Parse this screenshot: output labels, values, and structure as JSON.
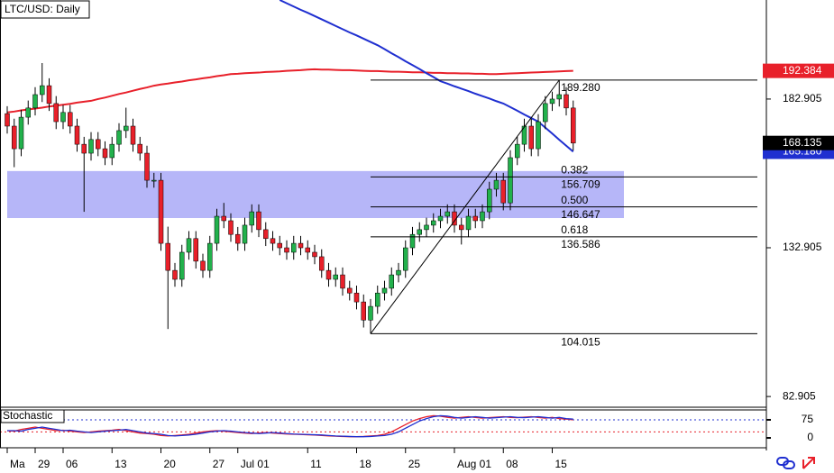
{
  "chart_data": {
    "type": "candlestick",
    "title": "LTC/USD: Daily",
    "categories": [
      "Ma",
      null,
      null,
      null,
      "29",
      null,
      null,
      null,
      "06",
      null,
      null,
      null,
      null,
      null,
      null,
      "13",
      null,
      null,
      null,
      null,
      null,
      null,
      "20",
      null,
      null,
      null,
      null,
      null,
      null,
      "27",
      null,
      null,
      null,
      "Jul 01",
      null,
      null,
      null,
      null,
      null,
      null,
      null,
      null,
      null,
      "11",
      null,
      null,
      null,
      null,
      null,
      null,
      "18",
      null,
      null,
      null,
      null,
      null,
      null,
      "25",
      null,
      null,
      null,
      null,
      null,
      null,
      "Aug 01",
      null,
      null,
      null,
      null,
      null,
      null,
      "08",
      null,
      null,
      null,
      null,
      null,
      null,
      "15",
      null,
      null,
      null
    ],
    "open": [
      178.0,
      173.8,
      166.2,
      176.8,
      179.9,
      184.4,
      187.4,
      181.4,
      175.3,
      178.4,
      173.8,
      167.7,
      164.7,
      169.3,
      166.2,
      163.2,
      167.7,
      172.3,
      173.8,
      167.7,
      164.7,
      155.6,
      155.6,
      134.4,
      125.3,
      122.3,
      131.4,
      136.0,
      128.4,
      125.3,
      134.4,
      143.5,
      142.0,
      137.4,
      134.4,
      140.5,
      145.0,
      139.0,
      136.0,
      134.4,
      132.9,
      131.4,
      134.4,
      132.9,
      131.4,
      129.9,
      125.3,
      122.3,
      123.8,
      119.3,
      117.7,
      114.7,
      108.6,
      113.2,
      117.7,
      119.3,
      123.8,
      125.3,
      132.9,
      137.4,
      139.0,
      140.5,
      142.0,
      143.5,
      145.0,
      140.5,
      139.0,
      143.5,
      142.0,
      145.0,
      152.6,
      155.6,
      148.0,
      163.2,
      167.7,
      173.8,
      166.2,
      175.3,
      181.4,
      182.9,
      184.4,
      179.9
    ],
    "high": [
      180.5,
      176.3,
      179.3,
      182.4,
      186.9,
      195.0,
      189.9,
      183.9,
      180.9,
      180.9,
      176.3,
      170.2,
      171.8,
      171.8,
      168.7,
      170.2,
      174.8,
      180.0,
      176.3,
      170.2,
      167.2,
      158.1,
      158.1,
      140.0,
      127.8,
      133.9,
      138.5,
      138.5,
      130.9,
      136.9,
      146.0,
      148.0,
      144.5,
      139.9,
      143.0,
      147.5,
      147.5,
      141.5,
      138.5,
      136.9,
      135.4,
      136.9,
      136.9,
      135.4,
      133.9,
      132.4,
      127.8,
      126.3,
      126.3,
      121.8,
      120.2,
      117.2,
      115.7,
      120.2,
      121.8,
      126.3,
      127.8,
      135.4,
      139.9,
      141.5,
      143.0,
      144.5,
      146.0,
      147.5,
      147.5,
      143.0,
      146.0,
      146.0,
      147.5,
      155.1,
      158.1,
      158.1,
      165.7,
      170.2,
      176.3,
      176.3,
      177.8,
      183.9,
      185.4,
      189.28,
      186.9,
      182.4
    ],
    "low": [
      171.3,
      160.0,
      163.7,
      174.3,
      177.4,
      181.9,
      178.9,
      172.8,
      172.8,
      171.3,
      165.2,
      145.0,
      162.2,
      163.7,
      160.7,
      160.7,
      165.2,
      169.8,
      165.2,
      162.2,
      153.1,
      153.1,
      131.9,
      105.6,
      119.8,
      119.8,
      128.9,
      125.9,
      122.8,
      122.8,
      131.9,
      139.5,
      134.9,
      131.9,
      131.9,
      138.0,
      136.5,
      133.5,
      131.9,
      130.4,
      128.9,
      128.9,
      130.4,
      128.9,
      127.4,
      122.8,
      119.8,
      119.8,
      116.8,
      115.2,
      112.2,
      106.1,
      104.015,
      110.7,
      115.2,
      116.8,
      121.3,
      122.8,
      130.4,
      134.9,
      136.5,
      138.0,
      139.5,
      141.0,
      138.0,
      134.0,
      136.5,
      139.5,
      139.5,
      142.5,
      150.1,
      145.5,
      145.5,
      160.7,
      165.2,
      163.7,
      163.7,
      172.8,
      178.9,
      180.4,
      177.4,
      165.6
    ],
    "close": [
      173.8,
      166.2,
      176.8,
      179.9,
      184.4,
      187.4,
      181.4,
      175.3,
      178.4,
      173.8,
      167.7,
      164.7,
      169.3,
      166.2,
      163.2,
      167.7,
      172.3,
      173.8,
      167.7,
      164.7,
      155.6,
      155.6,
      134.4,
      125.3,
      122.3,
      131.4,
      136.0,
      128.4,
      125.3,
      134.4,
      143.5,
      142.0,
      137.4,
      134.4,
      140.5,
      145.0,
      139.0,
      136.0,
      134.4,
      132.9,
      131.4,
      134.4,
      132.9,
      131.4,
      129.9,
      125.3,
      122.3,
      123.8,
      119.3,
      117.7,
      114.7,
      108.6,
      113.2,
      117.7,
      119.3,
      123.8,
      125.3,
      132.9,
      137.4,
      139.0,
      140.5,
      142.0,
      143.5,
      145.0,
      140.5,
      139.0,
      143.5,
      142.0,
      145.0,
      152.6,
      155.6,
      148.0,
      163.2,
      167.7,
      173.8,
      166.2,
      175.3,
      181.4,
      182.9,
      184.4,
      179.9,
      168.1
    ],
    "up_color": "#22b14c",
    "down_color": "#e8202a",
    "ylim": [
      79.3,
      216.2
    ],
    "yticks": [
      82.905,
      132.905,
      182.905
    ],
    "ma": [
      {
        "color": "#e8202a",
        "values": [
          178.4,
          178.7,
          179.1,
          179.4,
          179.7,
          180.0,
          180.4,
          180.7,
          181.0,
          181.3,
          181.7,
          182.0,
          182.3,
          182.9,
          183.4,
          184.0,
          184.6,
          185.1,
          185.7,
          186.3,
          186.8,
          187.4,
          187.8,
          188.1,
          188.5,
          188.8,
          189.2,
          189.5,
          189.9,
          190.2,
          190.6,
          190.9,
          191.3,
          191.4,
          191.6,
          191.7,
          191.8,
          192.0,
          192.1,
          192.2,
          192.4,
          192.5,
          192.6,
          192.8,
          192.9,
          192.8,
          192.8,
          192.7,
          192.6,
          192.6,
          192.5,
          192.4,
          192.3,
          192.3,
          192.2,
          192.1,
          192.1,
          192.0,
          191.9,
          191.9,
          191.8,
          191.7,
          191.7,
          191.6,
          191.6,
          191.5,
          191.5,
          191.4,
          191.4,
          191.3,
          191.3,
          191.4,
          191.5,
          191.6,
          191.7,
          191.8,
          191.9,
          192.0,
          192.1,
          192.2,
          192.3,
          192.4
        ]
      },
      {
        "color": "#1f2fd0",
        "values": [
          null,
          null,
          null,
          null,
          null,
          null,
          null,
          null,
          null,
          null,
          null,
          null,
          null,
          null,
          null,
          null,
          null,
          null,
          null,
          null,
          null,
          null,
          null,
          null,
          null,
          null,
          null,
          null,
          null,
          null,
          null,
          null,
          null,
          null,
          null,
          null,
          null,
          null,
          null,
          216.2,
          215.1,
          214.0,
          212.9,
          211.9,
          210.8,
          209.7,
          208.6,
          207.5,
          206.4,
          205.3,
          204.3,
          203.2,
          202.1,
          201.0,
          199.7,
          198.3,
          197.0,
          195.6,
          194.3,
          193.0,
          191.6,
          190.3,
          188.9,
          188.1,
          187.2,
          186.4,
          185.6,
          184.7,
          183.9,
          183.1,
          182.2,
          181.4,
          180.2,
          179.0,
          177.7,
          176.5,
          175.3,
          173.3,
          171.3,
          169.2,
          167.2,
          165.2
        ]
      }
    ],
    "zone": [
      142.9,
      158.7
    ],
    "zone_color": "#a9a9f7",
    "fib": {
      "high": {
        "value": 189.28,
        "label": "189.280"
      },
      "low": 104.015,
      "levels": [
        {
          "ratio": "0.382",
          "value": 156.709
        },
        {
          "ratio": "0.500",
          "value": 146.647
        },
        {
          "ratio": "0.618",
          "value": 136.586
        }
      ]
    },
    "price_labels": [
      {
        "value": 192.384,
        "color": "#e8202a"
      },
      {
        "value": 165.18,
        "label": "165.180",
        "color": "#1f2fd0"
      },
      {
        "value": 168.135,
        "color": "#000000"
      }
    ],
    "stochastic": {
      "title": "Stochastic",
      "ylim": [
        -41,
        116
      ],
      "yticks": [
        0,
        75
      ],
      "levels": [
        {
          "value": 75,
          "color": "#1f2fd0"
        },
        {
          "value": 25,
          "color": "#e8202a"
        }
      ],
      "series": [
        {
          "color": "#e8202a",
          "values": [
            30,
            28,
            35,
            40,
            45,
            40,
            35,
            30,
            32,
            28,
            25,
            22,
            25,
            28,
            30,
            32,
            35,
            30,
            25,
            20,
            18,
            15,
            10,
            8,
            10,
            12,
            15,
            20,
            25,
            28,
            30,
            28,
            25,
            22,
            20,
            18,
            20,
            22,
            20,
            18,
            16,
            15,
            14,
            13,
            12,
            10,
            8,
            7,
            6,
            5,
            5,
            6,
            8,
            10,
            15,
            25,
            40,
            55,
            70,
            80,
            88,
            92,
            90,
            85,
            82,
            85,
            88,
            85,
            82,
            84,
            86,
            88,
            85,
            84,
            86,
            88,
            85,
            82,
            85,
            80,
            78,
            75
          ]
        },
        {
          "color": "#1f2fd0",
          "values": [
            30,
            30,
            28,
            35,
            40,
            45,
            40,
            35,
            30,
            32,
            28,
            25,
            22,
            25,
            28,
            30,
            32,
            35,
            30,
            25,
            20,
            18,
            15,
            10,
            8,
            10,
            12,
            15,
            20,
            25,
            28,
            30,
            28,
            25,
            22,
            20,
            18,
            20,
            22,
            20,
            18,
            16,
            15,
            14,
            13,
            12,
            10,
            8,
            7,
            6,
            5,
            5,
            6,
            8,
            10,
            15,
            25,
            40,
            55,
            70,
            80,
            88,
            92,
            90,
            85,
            82,
            85,
            88,
            85,
            82,
            84,
            86,
            88,
            85,
            84,
            86,
            88,
            85,
            82,
            85,
            80,
            78
          ]
        }
      ]
    }
  }
}
